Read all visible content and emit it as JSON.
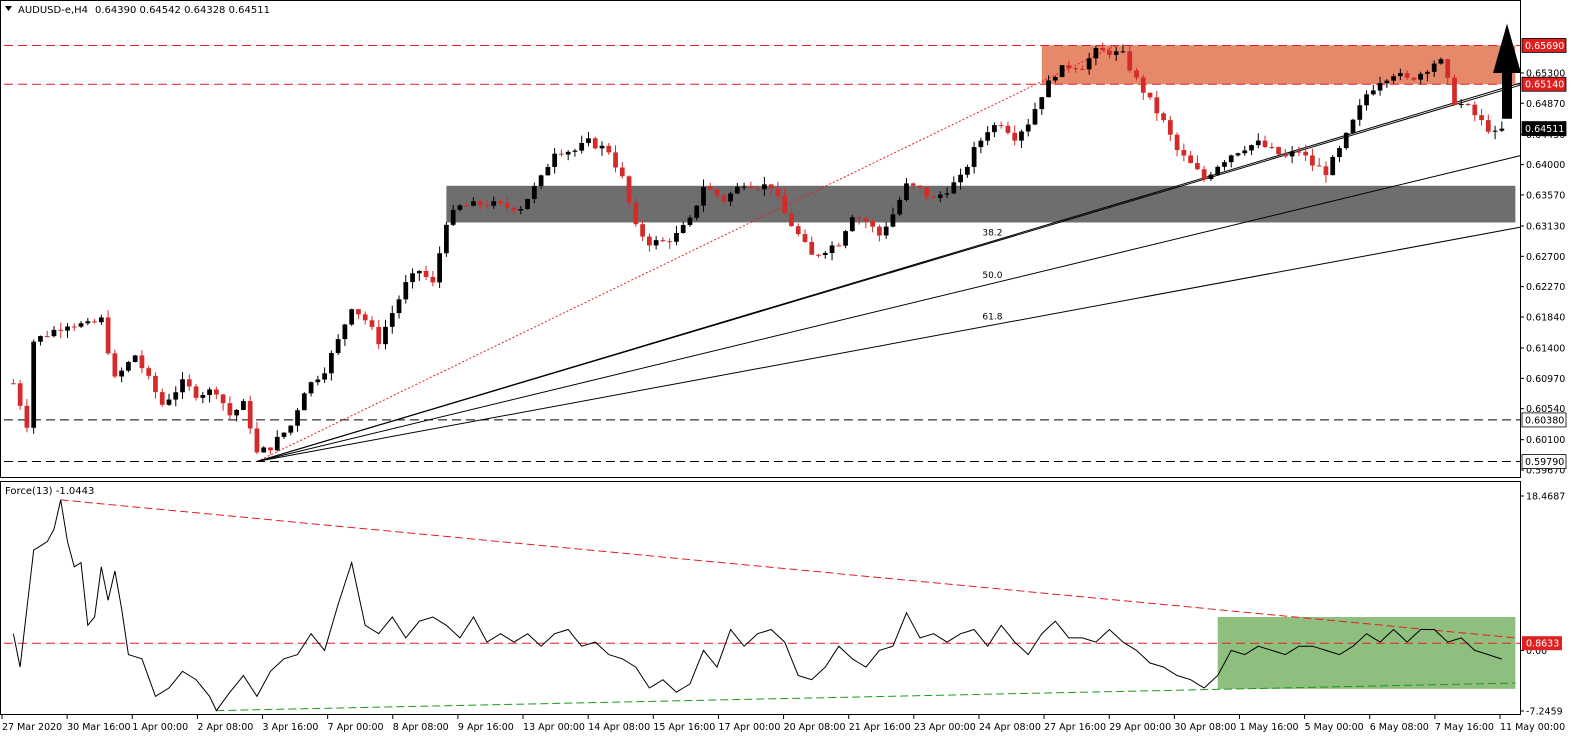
{
  "header": {
    "symbol": "AUDUSD-e,H4",
    "ohlc": "0.64390 0.64542 0.64328 0.64511"
  },
  "indicator": {
    "label": "Force(13) -1.0443"
  },
  "colors": {
    "bull": "#000000",
    "bear": "#d42a2a",
    "resistance_zone": "#e6896a",
    "support_zone": "#6e6e6e",
    "force_zone": "#8fbf7f",
    "red_line": "#e02020",
    "green_line": "#1a9a1a",
    "arrow": "#000000"
  },
  "chart_data": [
    {
      "type": "candlestick",
      "symbol": "AUDUSD-e",
      "timeframe": "H4",
      "ylim": [
        0.5967,
        0.6615
      ],
      "x_ticks": [
        "27 Mar 2020",
        "30 Mar 16:00",
        "1 Apr 00:00",
        "2 Apr 08:00",
        "3 Apr 16:00",
        "7 Apr 00:00",
        "8 Apr 08:00",
        "9 Apr 16:00",
        "13 Apr 00:00",
        "14 Apr 08:00",
        "15 Apr 16:00",
        "17 Apr 00:00",
        "20 Apr 08:00",
        "21 Apr 16:00",
        "23 Apr 00:00",
        "24 Apr 08:00",
        "27 Apr 16:00",
        "29 Apr 00:00",
        "30 Apr 08:00",
        "1 May 16:00",
        "5 May 00:00",
        "6 May 08:00",
        "7 May 16:00",
        "11 May 00:00"
      ],
      "y_ticks": [
        "0.65300",
        "0.64870",
        "0.64430",
        "0.64000",
        "0.63570",
        "0.63130",
        "0.62700",
        "0.62270",
        "0.61840",
        "0.61400",
        "0.60970",
        "0.60540",
        "0.60100",
        "0.59670"
      ],
      "price_tags": [
        {
          "value": 0.6569,
          "label": "0.65690",
          "style": "red"
        },
        {
          "value": 0.6514,
          "label": "0.65140",
          "style": "red"
        },
        {
          "value": 0.64511,
          "label": "0.64511",
          "style": "black"
        },
        {
          "value": 0.6038,
          "label": "0.60380",
          "style": "outline"
        },
        {
          "value": 0.5979,
          "label": "0.59790",
          "style": "outline"
        }
      ],
      "horizontal_levels": [
        {
          "value": 0.6569,
          "color": "red",
          "dashed": true
        },
        {
          "value": 0.6514,
          "color": "red",
          "dashed": true
        },
        {
          "value": 0.6038,
          "color": "black",
          "dashed": true
        },
        {
          "value": 0.5979,
          "color": "black",
          "dashed": true
        }
      ],
      "zones": [
        {
          "name": "resistance",
          "y_from": 0.6514,
          "y_to": 0.6569,
          "x_from_bar": 152,
          "x_to_bar": 222
        },
        {
          "name": "support",
          "y_from": 0.6318,
          "y_to": 0.637,
          "x_from_bar": 64,
          "x_to_bar": 222
        }
      ],
      "fan_origin": {
        "bar": 36,
        "price": 0.5979
      },
      "fan_top": {
        "bar": 163,
        "price": 0.6569
      },
      "fan_lines": [
        {
          "label": "38.2",
          "price_at_bar_163": 0.6344
        },
        {
          "label": "50.0",
          "price_at_bar_163": 0.6274
        },
        {
          "label": "61.8",
          "price_at_bar_163": 0.6205
        }
      ],
      "trend_lines": [
        {
          "from_bar": 36,
          "from_price": 0.5979,
          "to_bar": 220,
          "to_price": 0.6505
        }
      ],
      "anchors": [
        [
          0,
          0.609
        ],
        [
          2,
          0.6032
        ],
        [
          3,
          0.615
        ],
        [
          5,
          0.616
        ],
        [
          8,
          0.6175
        ],
        [
          11,
          0.6172
        ],
        [
          13,
          0.618
        ],
        [
          15,
          0.6095
        ],
        [
          18,
          0.613
        ],
        [
          20,
          0.6095
        ],
        [
          22,
          0.606
        ],
        [
          25,
          0.609
        ],
        [
          27,
          0.6075
        ],
        [
          30,
          0.608
        ],
        [
          32,
          0.6045
        ],
        [
          34,
          0.606
        ],
        [
          35,
          0.603
        ],
        [
          36,
          0.599
        ],
        [
          38,
          0.6
        ],
        [
          41,
          0.603
        ],
        [
          43,
          0.608
        ],
        [
          46,
          0.611
        ],
        [
          48,
          0.615
        ],
        [
          50,
          0.62
        ],
        [
          52,
          0.618
        ],
        [
          54,
          0.615
        ],
        [
          56,
          0.619
        ],
        [
          58,
          0.623
        ],
        [
          60,
          0.625
        ],
        [
          62,
          0.623
        ],
        [
          64,
          0.632
        ],
        [
          66,
          0.634
        ],
        [
          70,
          0.6345
        ],
        [
          73,
          0.634
        ],
        [
          75,
          0.634
        ],
        [
          78,
          0.638
        ],
        [
          80,
          0.642
        ],
        [
          83,
          0.642
        ],
        [
          85,
          0.6432
        ],
        [
          88,
          0.642
        ],
        [
          90,
          0.638
        ],
        [
          92,
          0.631
        ],
        [
          94,
          0.629
        ],
        [
          96,
          0.629
        ],
        [
          98,
          0.63
        ],
        [
          100,
          0.632
        ],
        [
          102,
          0.637
        ],
        [
          105,
          0.635
        ],
        [
          108,
          0.6375
        ],
        [
          110,
          0.637
        ],
        [
          112,
          0.637
        ],
        [
          114,
          0.633
        ],
        [
          116,
          0.63
        ],
        [
          118,
          0.627
        ],
        [
          120,
          0.628
        ],
        [
          122,
          0.629
        ],
        [
          124,
          0.633
        ],
        [
          126,
          0.632
        ],
        [
          128,
          0.63
        ],
        [
          130,
          0.633
        ],
        [
          132,
          0.637
        ],
        [
          134,
          0.6365
        ],
        [
          136,
          0.635
        ],
        [
          138,
          0.6365
        ],
        [
          140,
          0.638
        ],
        [
          142,
          0.642
        ],
        [
          144,
          0.645
        ],
        [
          146,
          0.646
        ],
        [
          148,
          0.644
        ],
        [
          150,
          0.646
        ],
        [
          152,
          0.65
        ],
        [
          154,
          0.653
        ],
        [
          156,
          0.654
        ],
        [
          158,
          0.654
        ],
        [
          160,
          0.656
        ],
        [
          162,
          0.656
        ],
        [
          164,
          0.6555
        ],
        [
          166,
          0.652
        ],
        [
          168,
          0.649
        ],
        [
          170,
          0.646
        ],
        [
          172,
          0.642
        ],
        [
          174,
          0.64
        ],
        [
          176,
          0.638
        ],
        [
          178,
          0.64
        ],
        [
          180,
          0.6415
        ],
        [
          182,
          0.6425
        ],
        [
          184,
          0.643
        ],
        [
          186,
          0.642
        ],
        [
          188,
          0.641
        ],
        [
          190,
          0.642
        ],
        [
          192,
          0.64
        ],
        [
          194,
          0.639
        ],
        [
          196,
          0.642
        ],
        [
          198,
          0.646
        ],
        [
          200,
          0.65
        ],
        [
          202,
          0.652
        ],
        [
          204,
          0.653
        ],
        [
          206,
          0.652
        ],
        [
          208,
          0.653
        ],
        [
          210,
          0.6545
        ],
        [
          211,
          0.6545
        ],
        [
          213,
          0.649
        ],
        [
          215,
          0.648
        ],
        [
          217,
          0.646
        ],
        [
          219,
          0.6443
        ],
        [
          220,
          0.6451
        ]
      ],
      "annotation": "up-arrow"
    },
    {
      "type": "line",
      "name": "Force(13)",
      "ylim": [
        -7.2459,
        18.4687
      ],
      "y_ticks": [
        "18.4687",
        "0.00",
        "-7.2459"
      ],
      "last_value": -1.0443,
      "price_tag": {
        "value": 0.8633,
        "label": "0.8633"
      },
      "horizontal_levels": [
        {
          "value": 0.8633,
          "color": "red",
          "dashed": true
        }
      ],
      "zones": [
        {
          "name": "consolidation",
          "y_from": -4.6,
          "y_to": 4.0,
          "x_from_bar": 178,
          "x_to_bar": 222
        }
      ],
      "trend_lines": [
        {
          "name": "descending",
          "color": "red",
          "dashed": true,
          "from_bar": 7,
          "from_value": 18.0,
          "to_bar": 222,
          "to_value": 1.5
        },
        {
          "name": "ascending",
          "color": "green",
          "dashed": true,
          "from_bar": 30,
          "from_value": -7.2,
          "to_bar": 222,
          "to_value": -3.9
        }
      ],
      "anchors": [
        [
          0,
          2.0
        ],
        [
          1,
          -2.0
        ],
        [
          3,
          12.0
        ],
        [
          5,
          13.0
        ],
        [
          6,
          14.5
        ],
        [
          7,
          18.0
        ],
        [
          8,
          13.0
        ],
        [
          9,
          10.0
        ],
        [
          10,
          10.5
        ],
        [
          11,
          3.0
        ],
        [
          12,
          4.0
        ],
        [
          13,
          10.0
        ],
        [
          14,
          6.0
        ],
        [
          15,
          9.5
        ],
        [
          16,
          5.0
        ],
        [
          17,
          -0.5
        ],
        [
          19,
          -1.0
        ],
        [
          21,
          -5.5
        ],
        [
          23,
          -4.5
        ],
        [
          25,
          -2.5
        ],
        [
          27,
          -3.5
        ],
        [
          29,
          -5.5
        ],
        [
          30,
          -7.2
        ],
        [
          32,
          -5.0
        ],
        [
          34,
          -3.0
        ],
        [
          36,
          -5.5
        ],
        [
          38,
          -2.5
        ],
        [
          40,
          -1.0
        ],
        [
          42,
          -0.5
        ],
        [
          44,
          2.0
        ],
        [
          46,
          0.0
        ],
        [
          48,
          5.5
        ],
        [
          50,
          10.5
        ],
        [
          52,
          3.0
        ],
        [
          54,
          2.0
        ],
        [
          56,
          4.0
        ],
        [
          58,
          1.5
        ],
        [
          60,
          3.5
        ],
        [
          62,
          4.0
        ],
        [
          64,
          3.0
        ],
        [
          66,
          1.5
        ],
        [
          68,
          4.0
        ],
        [
          70,
          1.0
        ],
        [
          72,
          2.0
        ],
        [
          74,
          1.0
        ],
        [
          76,
          2.0
        ],
        [
          78,
          0.5
        ],
        [
          80,
          2.0
        ],
        [
          82,
          2.5
        ],
        [
          84,
          0.5
        ],
        [
          86,
          1.0
        ],
        [
          88,
          -0.5
        ],
        [
          90,
          -1.0
        ],
        [
          92,
          -2.0
        ],
        [
          94,
          -4.5
        ],
        [
          96,
          -3.5
        ],
        [
          98,
          -5.0
        ],
        [
          100,
          -4.0
        ],
        [
          102,
          0.0
        ],
        [
          104,
          -2.0
        ],
        [
          106,
          2.5
        ],
        [
          108,
          0.5
        ],
        [
          110,
          2.0
        ],
        [
          112,
          2.5
        ],
        [
          114,
          1.0
        ],
        [
          116,
          -3.0
        ],
        [
          118,
          -3.5
        ],
        [
          120,
          -2.0
        ],
        [
          122,
          0.5
        ],
        [
          124,
          -1.0
        ],
        [
          126,
          -2.0
        ],
        [
          128,
          0.0
        ],
        [
          130,
          0.5
        ],
        [
          132,
          4.5
        ],
        [
          134,
          1.5
        ],
        [
          136,
          2.0
        ],
        [
          138,
          1.0
        ],
        [
          140,
          2.0
        ],
        [
          142,
          2.5
        ],
        [
          144,
          0.5
        ],
        [
          146,
          3.0
        ],
        [
          148,
          1.0
        ],
        [
          150,
          -0.5
        ],
        [
          152,
          2.0
        ],
        [
          154,
          3.5
        ],
        [
          156,
          1.5
        ],
        [
          158,
          1.5
        ],
        [
          160,
          1.0
        ],
        [
          162,
          2.5
        ],
        [
          164,
          1.0
        ],
        [
          166,
          0.0
        ],
        [
          168,
          -1.5
        ],
        [
          170,
          -2.0
        ],
        [
          172,
          -3.0
        ],
        [
          174,
          -3.5
        ],
        [
          176,
          -4.5
        ],
        [
          178,
          -3.0
        ],
        [
          180,
          0.0
        ],
        [
          182,
          -0.5
        ],
        [
          184,
          0.5
        ],
        [
          186,
          0.0
        ],
        [
          188,
          -0.5
        ],
        [
          190,
          0.5
        ],
        [
          192,
          0.5
        ],
        [
          194,
          0.0
        ],
        [
          196,
          -0.5
        ],
        [
          198,
          0.5
        ],
        [
          200,
          2.0
        ],
        [
          202,
          1.0
        ],
        [
          204,
          2.5
        ],
        [
          206,
          1.0
        ],
        [
          208,
          2.5
        ],
        [
          210,
          2.5
        ],
        [
          212,
          1.0
        ],
        [
          214,
          1.5
        ],
        [
          216,
          0.0
        ],
        [
          218,
          -0.5
        ],
        [
          220,
          -1.0443
        ]
      ]
    }
  ]
}
